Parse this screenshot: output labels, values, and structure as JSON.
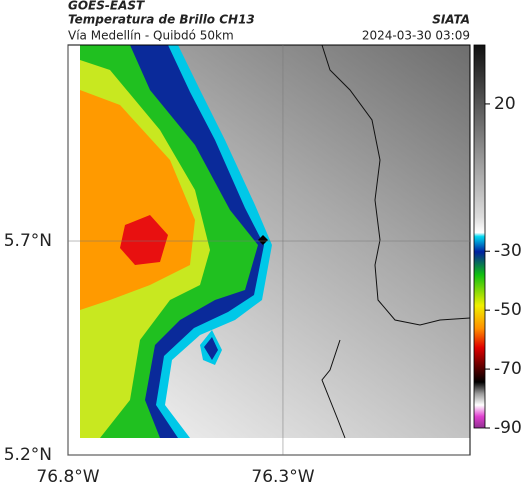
{
  "header": {
    "satellite": "GOES-EAST",
    "product": "Temperatura de Brillo CH13",
    "brand": "SIATA",
    "region": "Vía Medellín - Quibdó 50km",
    "timestamp": "2024-03-30 03:09"
  },
  "map": {
    "xlim": [
      -76.8,
      -75.865
    ],
    "ylim": [
      5.2,
      6.158
    ],
    "xticks": [
      {
        "value": -76.8,
        "label": "76.8°W"
      },
      {
        "value": -76.3,
        "label": "76.3°W"
      }
    ],
    "yticks": [
      {
        "value": 5.2,
        "label": "5.2°N"
      },
      {
        "value": 5.7,
        "label": "5.7°N"
      }
    ]
  },
  "colorbar": {
    "clim": [
      -90,
      40
    ],
    "ticks": [
      20,
      -30,
      -50,
      -70,
      -90
    ]
  }
}
